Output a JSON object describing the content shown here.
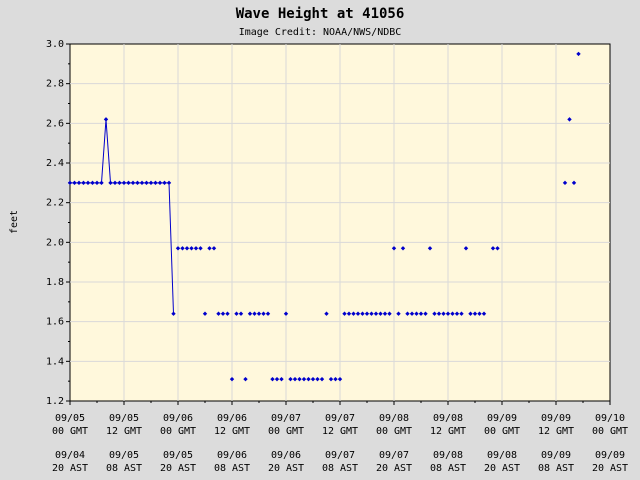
{
  "chart_data": {
    "type": "scatter",
    "title": "Wave Height at 41056",
    "subtitle": "Image Credit: NOAA/NWS/NDBC",
    "xlabel": "",
    "ylabel": "feet",
    "ylim": [
      1.2,
      3.0
    ],
    "yticks": [
      "1.2",
      "1.4",
      "1.6",
      "1.8",
      "2.0",
      "2.2",
      "2.4",
      "2.6",
      "2.8",
      "3.0"
    ],
    "xlim": [
      "09/05 00 GMT",
      "09/10 00 GMT"
    ],
    "xticks_gmt": [
      [
        "09/05",
        "00 GMT"
      ],
      [
        "09/05",
        "12 GMT"
      ],
      [
        "09/06",
        "00 GMT"
      ],
      [
        "09/06",
        "12 GMT"
      ],
      [
        "09/07",
        "00 GMT"
      ],
      [
        "09/07",
        "12 GMT"
      ],
      [
        "09/08",
        "00 GMT"
      ],
      [
        "09/08",
        "12 GMT"
      ],
      [
        "09/09",
        "00 GMT"
      ],
      [
        "09/09",
        "12 GMT"
      ],
      [
        "09/10",
        "00 GMT"
      ]
    ],
    "xticks_ast": [
      [
        "09/04",
        "20 AST"
      ],
      [
        "09/05",
        "08 AST"
      ],
      [
        "09/05",
        "20 AST"
      ],
      [
        "09/06",
        "08 AST"
      ],
      [
        "09/06",
        "20 AST"
      ],
      [
        "09/07",
        "08 AST"
      ],
      [
        "09/07",
        "20 AST"
      ],
      [
        "09/08",
        "08 AST"
      ],
      [
        "09/08",
        "20 AST"
      ],
      [
        "09/09",
        "08 AST"
      ],
      [
        "09/09",
        "20 AST"
      ]
    ],
    "grid": true,
    "line_segment_hours": [
      0,
      23.5
    ],
    "series": [
      {
        "points_hours_feet": [
          [
            0.0,
            2.3
          ],
          [
            1.0,
            2.3
          ],
          [
            2.0,
            2.3
          ],
          [
            3.0,
            2.3
          ],
          [
            4.0,
            2.3
          ],
          [
            5.0,
            2.3
          ],
          [
            6.0,
            2.3
          ],
          [
            7.0,
            2.3
          ],
          [
            8.0,
            2.62
          ],
          [
            9.0,
            2.3
          ],
          [
            10.0,
            2.3
          ],
          [
            11.0,
            2.3
          ],
          [
            12.0,
            2.3
          ],
          [
            13.0,
            2.3
          ],
          [
            14.0,
            2.3
          ],
          [
            15.0,
            2.3
          ],
          [
            16.0,
            2.3
          ],
          [
            17.0,
            2.3
          ],
          [
            18.0,
            2.3
          ],
          [
            19.0,
            2.3
          ],
          [
            20.0,
            2.3
          ],
          [
            21.0,
            2.3
          ],
          [
            22.0,
            2.3
          ],
          [
            23.0,
            1.64
          ],
          [
            24.0,
            1.97
          ],
          [
            25.0,
            1.97
          ],
          [
            26.0,
            1.97
          ],
          [
            27.0,
            1.97
          ],
          [
            28.0,
            1.97
          ],
          [
            29.0,
            1.97
          ],
          [
            30.0,
            1.64
          ],
          [
            31.0,
            1.97
          ],
          [
            32.0,
            1.97
          ],
          [
            33.0,
            1.64
          ],
          [
            34.0,
            1.64
          ],
          [
            35.0,
            1.64
          ],
          [
            36.0,
            1.31
          ],
          [
            37.0,
            1.64
          ],
          [
            38.0,
            1.64
          ],
          [
            39.0,
            1.31
          ],
          [
            40.0,
            1.64
          ],
          [
            41.0,
            1.64
          ],
          [
            42.0,
            1.64
          ],
          [
            43.0,
            1.64
          ],
          [
            44.0,
            1.64
          ],
          [
            45.0,
            1.31
          ],
          [
            46.0,
            1.31
          ],
          [
            47.0,
            1.31
          ],
          [
            48.0,
            1.64
          ],
          [
            49.0,
            1.31
          ],
          [
            50.0,
            1.31
          ],
          [
            51.0,
            1.31
          ],
          [
            52.0,
            1.31
          ],
          [
            53.0,
            1.31
          ],
          [
            54.0,
            1.31
          ],
          [
            55.0,
            1.31
          ],
          [
            56.0,
            1.31
          ],
          [
            57.0,
            1.64
          ],
          [
            58.0,
            1.31
          ],
          [
            59.0,
            1.31
          ],
          [
            60.0,
            1.31
          ],
          [
            61.0,
            1.64
          ],
          [
            62.0,
            1.64
          ],
          [
            63.0,
            1.64
          ],
          [
            64.0,
            1.64
          ],
          [
            65.0,
            1.64
          ],
          [
            66.0,
            1.64
          ],
          [
            67.0,
            1.64
          ],
          [
            68.0,
            1.64
          ],
          [
            69.0,
            1.64
          ],
          [
            70.0,
            1.64
          ],
          [
            71.0,
            1.64
          ],
          [
            72.0,
            1.97
          ],
          [
            73.0,
            1.64
          ],
          [
            74.0,
            1.97
          ],
          [
            75.0,
            1.64
          ],
          [
            76.0,
            1.64
          ],
          [
            77.0,
            1.64
          ],
          [
            78.0,
            1.64
          ],
          [
            79.0,
            1.64
          ],
          [
            80.0,
            1.97
          ],
          [
            81.0,
            1.64
          ],
          [
            82.0,
            1.64
          ],
          [
            83.0,
            1.64
          ],
          [
            84.0,
            1.64
          ],
          [
            85.0,
            1.64
          ],
          [
            86.0,
            1.64
          ],
          [
            87.0,
            1.64
          ],
          [
            88.0,
            1.97
          ],
          [
            89.0,
            1.64
          ],
          [
            90.0,
            1.64
          ],
          [
            91.0,
            1.64
          ],
          [
            92.0,
            1.64
          ],
          [
            94.0,
            1.97
          ],
          [
            95.0,
            1.97
          ],
          [
            110.0,
            2.3
          ],
          [
            111.0,
            2.62
          ],
          [
            112.0,
            2.3
          ],
          [
            113.0,
            2.95
          ]
        ]
      }
    ],
    "colors": {
      "background": "#dcdcdc",
      "plot": "#fff8dc",
      "grid": "#d9d9d9",
      "marker": "#0000cc"
    }
  }
}
